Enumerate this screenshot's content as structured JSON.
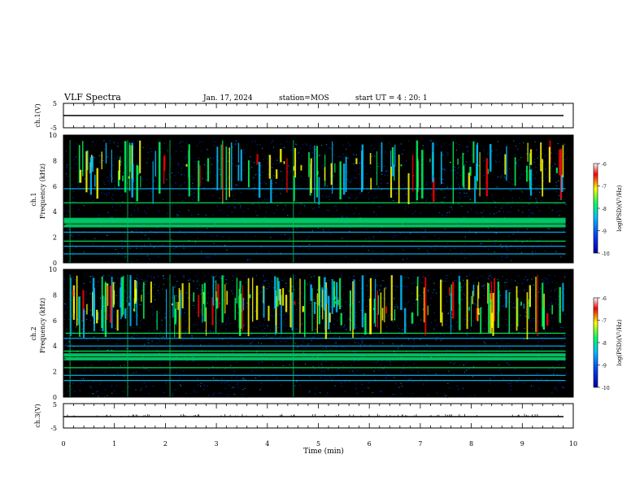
{
  "header": {
    "title": "VLF Spectra",
    "date": "Jan. 17, 2024",
    "station": "station=MOS",
    "start": "start UT =  4 : 20: 1"
  },
  "chart_data": [
    {
      "type": "line",
      "name": "ch1_waveform",
      "ylabel": "ch.1(V)",
      "ylim": [
        -5,
        5
      ],
      "yticks": [
        "5",
        "-5"
      ],
      "xlim": [
        0,
        10
      ],
      "series": [
        {
          "x": [
            0,
            9.85
          ],
          "values": [
            0,
            0
          ]
        }
      ]
    },
    {
      "type": "heatmap",
      "name": "ch1_spectrogram",
      "ylabel": "ch.1\nFrequency  (kHz)",
      "ylim": [
        0,
        10
      ],
      "yticks": [
        "0",
        "2",
        "4",
        "6",
        "8",
        "10"
      ],
      "xlim": [
        0,
        10
      ],
      "colorbar": {
        "label": "log(PSD)(V²/Hz)",
        "range": [
          -10,
          -6
        ],
        "ticks": [
          "-6",
          "-7",
          "-8",
          "-9",
          "-10"
        ]
      },
      "bands_khz": [
        0.7,
        1.3,
        1.7,
        2.4,
        2.9,
        3.2,
        3.4,
        5.8,
        4.7
      ],
      "data_end_min": 9.85
    },
    {
      "type": "heatmap",
      "name": "ch2_spectrogram",
      "ylabel": "ch.2\nFrequency  (kHz)",
      "ylim": [
        0,
        10
      ],
      "yticks": [
        "0",
        "2",
        "4",
        "6",
        "8",
        "10"
      ],
      "xlim": [
        0,
        10
      ],
      "colorbar": {
        "label": "log(PSD)(V²/Hz)",
        "range": [
          -10,
          -6
        ],
        "ticks": [
          "-6",
          "-7",
          "-8",
          "-9",
          "-10"
        ]
      },
      "bands_khz": [
        1.3,
        1.7,
        2.3,
        3.0,
        3.3,
        3.6,
        4.0,
        4.6,
        5.0
      ],
      "data_end_min": 9.85
    },
    {
      "type": "line",
      "name": "ch3_waveform",
      "ylabel": "ch.3(V)",
      "ylim": [
        -5,
        5
      ],
      "yticks": [
        "5",
        "-5"
      ],
      "xlim": [
        0,
        10
      ],
      "series": [
        {
          "x": [
            0,
            9.85
          ],
          "values": [
            0,
            0
          ]
        }
      ]
    }
  ],
  "xaxis": {
    "label": "Time  (min)",
    "ticks": [
      "0",
      "1",
      "2",
      "3",
      "4",
      "5",
      "6",
      "7",
      "8",
      "9",
      "10"
    ]
  },
  "colors": {
    "background": "#000000",
    "colormap": [
      "#0000a0",
      "#0040ff",
      "#00c0ff",
      "#00ff60",
      "#ffff00",
      "#ff0000",
      "#ffffff"
    ]
  }
}
